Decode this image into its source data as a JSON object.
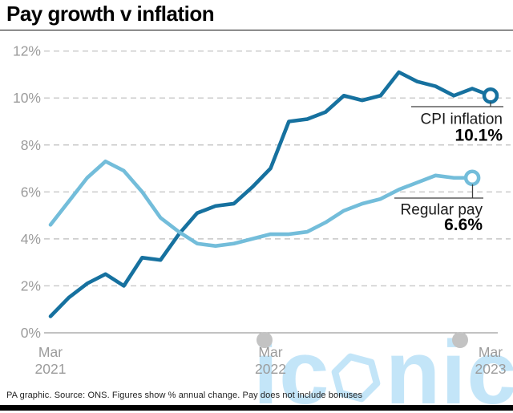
{
  "header": {
    "title": "Pay growth v inflation"
  },
  "chart_data": {
    "type": "line",
    "title": "Pay growth v inflation",
    "xlabel": "",
    "ylabel": "% annual change",
    "ylim": [
      0,
      12
    ],
    "grid": "horizontal-dashed",
    "x": [
      "Mar 2021",
      "Apr 2021",
      "May 2021",
      "Jun 2021",
      "Jul 2021",
      "Aug 2021",
      "Sep 2021",
      "Oct 2021",
      "Nov 2021",
      "Dec 2021",
      "Jan 2022",
      "Feb 2022",
      "Mar 2022",
      "Apr 2022",
      "May 2022",
      "Jun 2022",
      "Jul 2022",
      "Aug 2022",
      "Sep 2022",
      "Oct 2022",
      "Nov 2022",
      "Dec 2022",
      "Jan 2023",
      "Feb 2023",
      "Mar 2023"
    ],
    "series": [
      {
        "name": "CPI inflation",
        "color": "#16719f",
        "values": [
          0.7,
          1.5,
          2.1,
          2.5,
          2.0,
          3.2,
          3.1,
          4.2,
          5.1,
          5.4,
          5.5,
          6.2,
          7.0,
          9.0,
          9.1,
          9.4,
          10.1,
          9.9,
          10.1,
          11.1,
          10.7,
          10.5,
          10.1,
          10.4,
          10.1
        ]
      },
      {
        "name": "Regular pay",
        "color": "#73bdda",
        "values": [
          4.6,
          5.6,
          6.6,
          7.3,
          6.9,
          6.0,
          4.9,
          4.3,
          3.8,
          3.7,
          3.8,
          4.0,
          4.2,
          4.2,
          4.3,
          4.7,
          5.2,
          5.5,
          5.7,
          6.1,
          6.4,
          6.7,
          6.6,
          6.6
        ]
      }
    ],
    "y_ticks": [
      0,
      2,
      4,
      6,
      8,
      10,
      12
    ],
    "y_tick_labels": [
      "0%",
      "2%",
      "4%",
      "6%",
      "8%",
      "10%",
      "12%"
    ],
    "x_ticks": [
      {
        "label_top": "Mar",
        "label_bottom": "2021",
        "month_index": 0,
        "dot": false
      },
      {
        "label_top": "Mar",
        "label_bottom": "2022",
        "month_index": 12,
        "dot": true
      },
      {
        "label_top": "Mar",
        "label_bottom": "2023",
        "month_index": 24,
        "dot": true
      }
    ]
  },
  "annotations": {
    "cpi": {
      "label": "CPI inflation",
      "value": "10.1%"
    },
    "pay": {
      "label": "Regular pay",
      "value": "6.6%"
    }
  },
  "footer": {
    "source": "PA graphic. Source: ONS. Figures show % annual change. Pay does not include bonuses"
  },
  "watermark": {
    "text": "iconic",
    "logo": "hexagon-icon"
  },
  "colors": {
    "cpi_line": "#16719f",
    "pay_line": "#73bdda",
    "gridline": "#c8c8c8",
    "axis_text": "#9b9b9b",
    "watermark": "#b9e1f7"
  }
}
